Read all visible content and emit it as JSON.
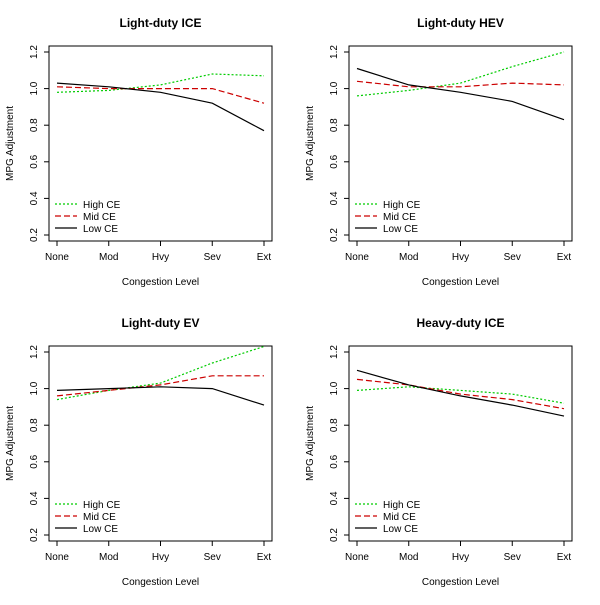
{
  "chart_data": [
    {
      "type": "line",
      "title": "Light-duty ICE",
      "xlabel": "Congestion Level",
      "ylabel": "MPG Adjustment",
      "categories": [
        "None",
        "Mod",
        "Hvy",
        "Sev",
        "Ext"
      ],
      "ylim": [
        0.2,
        1.2
      ],
      "yticks": [
        0.2,
        0.4,
        0.6,
        0.8,
        1.0,
        1.2
      ],
      "ytick_labels": [
        "0.2",
        "0.4",
        "0.6",
        "0.8",
        "1.0",
        "1.2"
      ],
      "legend_position": "bottom-left",
      "series": [
        {
          "name": "High CE",
          "color": "#00cc00",
          "dash": "dotted",
          "values": [
            0.98,
            0.99,
            1.02,
            1.08,
            1.07
          ]
        },
        {
          "name": "Mid CE",
          "color": "#cc0000",
          "dash": "dashed",
          "values": [
            1.01,
            1.0,
            1.0,
            1.0,
            0.92
          ]
        },
        {
          "name": "Low CE",
          "color": "#000000",
          "dash": "solid",
          "values": [
            1.03,
            1.01,
            0.98,
            0.92,
            0.77
          ]
        }
      ]
    },
    {
      "type": "line",
      "title": "Light-duty HEV",
      "xlabel": "Congestion Level",
      "ylabel": "MPG Adjustment",
      "categories": [
        "None",
        "Mod",
        "Hvy",
        "Sev",
        "Ext"
      ],
      "ylim": [
        0.2,
        1.2
      ],
      "yticks": [
        0.2,
        0.4,
        0.6,
        0.8,
        1.0,
        1.2
      ],
      "ytick_labels": [
        "0.2",
        "0.4",
        "0.6",
        "0.8",
        "1.0",
        "1.2"
      ],
      "legend_position": "bottom-left",
      "series": [
        {
          "name": "High CE",
          "color": "#00cc00",
          "dash": "dotted",
          "values": [
            0.96,
            0.99,
            1.03,
            1.12,
            1.2
          ]
        },
        {
          "name": "Mid CE",
          "color": "#cc0000",
          "dash": "dashed",
          "values": [
            1.04,
            1.01,
            1.01,
            1.03,
            1.02
          ]
        },
        {
          "name": "Low CE",
          "color": "#000000",
          "dash": "solid",
          "values": [
            1.11,
            1.02,
            0.98,
            0.93,
            0.83
          ]
        }
      ]
    },
    {
      "type": "line",
      "title": "Light-duty EV",
      "xlabel": "Congestion Level",
      "ylabel": "MPG Adjustment",
      "categories": [
        "None",
        "Mod",
        "Hvy",
        "Sev",
        "Ext"
      ],
      "ylim": [
        0.2,
        1.2
      ],
      "yticks": [
        0.2,
        0.4,
        0.6,
        0.8,
        1.0,
        1.2
      ],
      "ytick_labels": [
        "0.2",
        "0.4",
        "0.6",
        "0.8",
        "1.0",
        "1.2"
      ],
      "legend_position": "bottom-left",
      "series": [
        {
          "name": "High CE",
          "color": "#00cc00",
          "dash": "dotted",
          "values": [
            0.94,
            0.99,
            1.03,
            1.14,
            1.23
          ]
        },
        {
          "name": "Mid CE",
          "color": "#cc0000",
          "dash": "dashed",
          "values": [
            0.96,
            0.99,
            1.02,
            1.07,
            1.07
          ]
        },
        {
          "name": "Low CE",
          "color": "#000000",
          "dash": "solid",
          "values": [
            0.99,
            1.0,
            1.01,
            1.0,
            0.91
          ]
        }
      ]
    },
    {
      "type": "line",
      "title": "Heavy-duty ICE",
      "xlabel": "Congestion Level",
      "ylabel": "MPG Adjustment",
      "categories": [
        "None",
        "Mod",
        "Hvy",
        "Sev",
        "Ext"
      ],
      "ylim": [
        0.2,
        1.2
      ],
      "yticks": [
        0.2,
        0.4,
        0.6,
        0.8,
        1.0,
        1.2
      ],
      "ytick_labels": [
        "0.2",
        "0.4",
        "0.6",
        "0.8",
        "1.0",
        "1.2"
      ],
      "legend_position": "bottom-left",
      "series": [
        {
          "name": "High CE",
          "color": "#00cc00",
          "dash": "dotted",
          "values": [
            0.99,
            1.01,
            0.99,
            0.97,
            0.92
          ]
        },
        {
          "name": "Mid CE",
          "color": "#cc0000",
          "dash": "dashed",
          "values": [
            1.05,
            1.02,
            0.97,
            0.94,
            0.89
          ]
        },
        {
          "name": "Low CE",
          "color": "#000000",
          "dash": "solid",
          "values": [
            1.1,
            1.02,
            0.96,
            0.91,
            0.85
          ]
        }
      ]
    }
  ]
}
